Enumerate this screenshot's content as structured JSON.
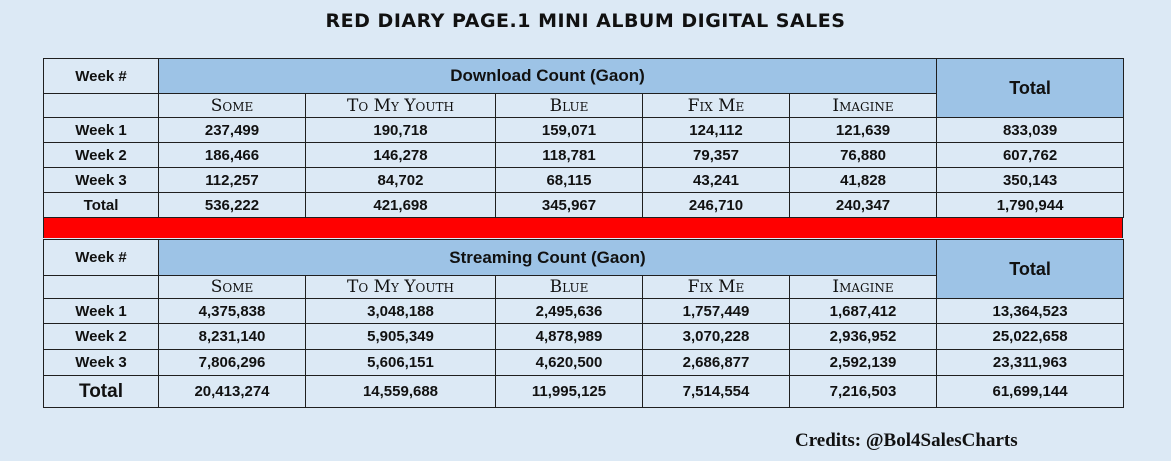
{
  "title": "RED DIARY PAGE.1 MINI ALBUM DIGITAL SALES",
  "credits": "Credits: @Bol4SalesCharts",
  "colors": {
    "background": "#dce9f5",
    "header_blue": "#9dc3e6",
    "divider_red": "#ff0000"
  },
  "chart_data": [
    {
      "type": "table",
      "title": "Download Count (Gaon)",
      "week_header": "Week #",
      "total_header": "Total",
      "columns": [
        "Some",
        "To My Youth",
        "Blue",
        "Fix Me",
        "Imagine"
      ],
      "rows": [
        {
          "label": "Week 1",
          "values": [
            "237,499",
            "190,718",
            "159,071",
            "124,112",
            "121,639"
          ],
          "total": "833,039"
        },
        {
          "label": "Week 2",
          "values": [
            "186,466",
            "146,278",
            "118,781",
            "79,357",
            "76,880"
          ],
          "total": "607,762"
        },
        {
          "label": "Week 3",
          "values": [
            "112,257",
            "84,702",
            "68,115",
            "43,241",
            "41,828"
          ],
          "total": "350,143"
        },
        {
          "label": "Total",
          "values": [
            "536,222",
            "421,698",
            "345,967",
            "246,710",
            "240,347"
          ],
          "total": "1,790,944"
        }
      ]
    },
    {
      "type": "table",
      "title": "Streaming Count (Gaon)",
      "week_header": "Week #",
      "total_header": "Total",
      "columns": [
        "Some",
        "To My Youth",
        "Blue",
        "Fix Me",
        "Imagine"
      ],
      "rows": [
        {
          "label": "Week 1",
          "values": [
            "4,375,838",
            "3,048,188",
            "2,495,636",
            "1,757,449",
            "1,687,412"
          ],
          "total": "13,364,523"
        },
        {
          "label": "Week 2",
          "values": [
            "8,231,140",
            "5,905,349",
            "4,878,989",
            "3,070,228",
            "2,936,952"
          ],
          "total": "25,022,658"
        },
        {
          "label": "Week 3",
          "values": [
            "7,806,296",
            "5,606,151",
            "4,620,500",
            "2,686,877",
            "2,592,139"
          ],
          "total": "23,311,963"
        },
        {
          "label": "Total",
          "values": [
            "20,413,274",
            "14,559,688",
            "11,995,125",
            "7,514,554",
            "7,216,503"
          ],
          "total": "61,699,144"
        }
      ]
    }
  ]
}
